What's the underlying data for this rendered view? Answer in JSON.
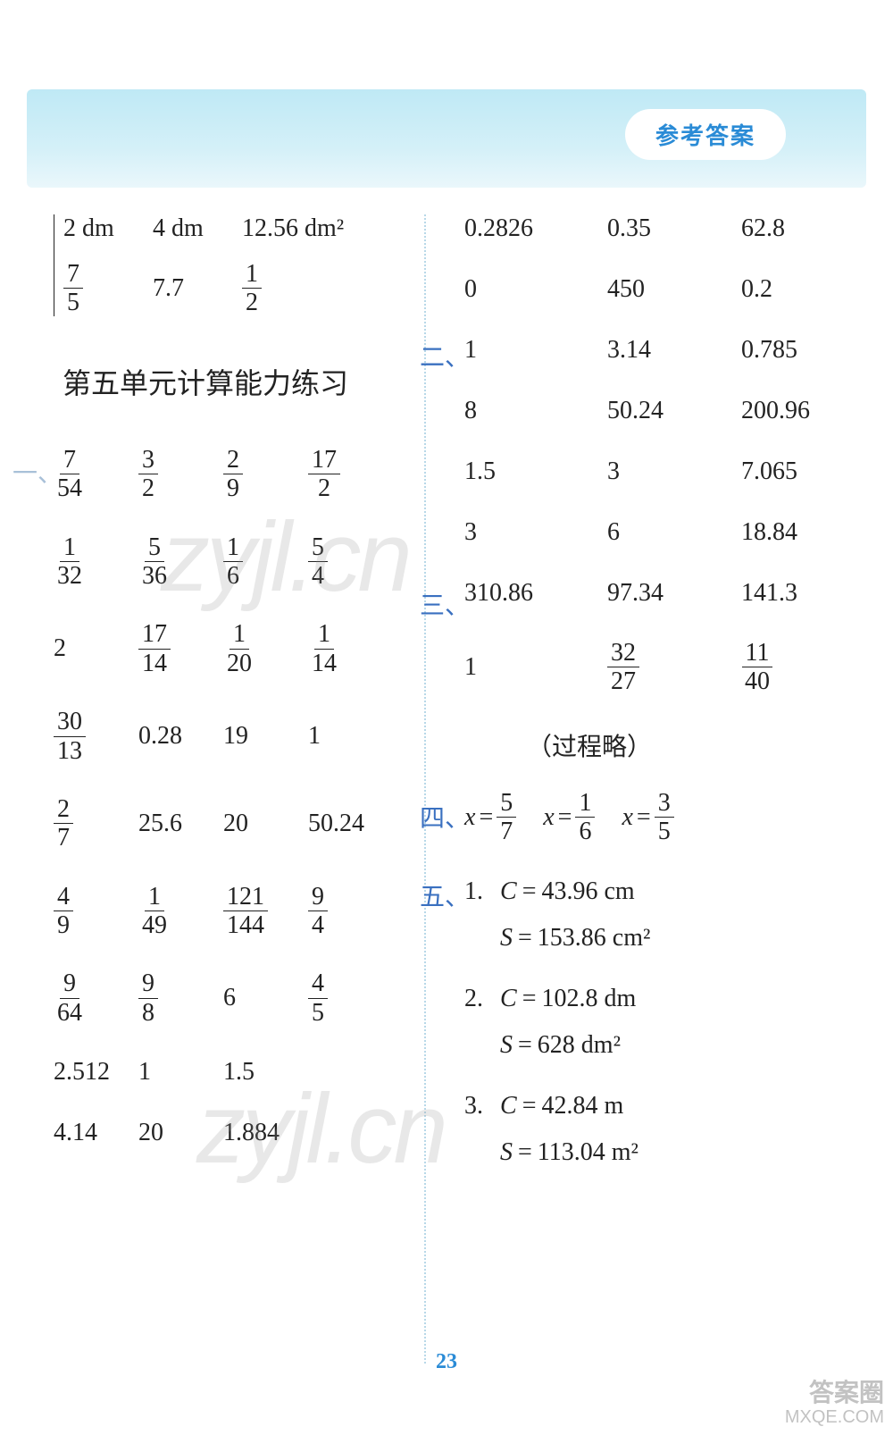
{
  "colors": {
    "banner_bg_top": "#bfe9f5",
    "banner_pill_text": "#2a8bd6",
    "section_marker_one": "#a8c0d8",
    "section_marker_two": "#3a70c0",
    "page_num": "#2a8bd6",
    "text": "#222222"
  },
  "banner": {
    "title": "参考答案"
  },
  "top_block": {
    "row1": [
      "2 dm",
      "4 dm",
      "12.56 dm²"
    ],
    "row2": [
      {
        "n": "7",
        "d": "5"
      },
      "7.7",
      {
        "n": "1",
        "d": "2"
      }
    ]
  },
  "heading": "第五单元计算能力练习",
  "section_one": {
    "marker": "一、",
    "rows": [
      [
        {
          "n": "7",
          "d": "54"
        },
        {
          "n": "3",
          "d": "2"
        },
        {
          "n": "2",
          "d": "9"
        },
        {
          "n": "17",
          "d": "2"
        }
      ],
      [
        {
          "n": "1",
          "d": "32"
        },
        {
          "n": "5",
          "d": "36"
        },
        {
          "n": "1",
          "d": "6"
        },
        {
          "n": "5",
          "d": "4"
        }
      ],
      [
        "2",
        {
          "n": "17",
          "d": "14"
        },
        {
          "n": "1",
          "d": "20"
        },
        {
          "n": "1",
          "d": "14"
        }
      ],
      [
        {
          "n": "30",
          "d": "13"
        },
        "0.28",
        "19",
        "1"
      ],
      [
        {
          "n": "2",
          "d": "7"
        },
        "25.6",
        "20",
        "50.24"
      ],
      [
        {
          "n": "4",
          "d": "9"
        },
        {
          "n": "1",
          "d": "49"
        },
        {
          "n": "121",
          "d": "144"
        },
        {
          "n": "9",
          "d": "4"
        }
      ],
      [
        {
          "n": "9",
          "d": "64"
        },
        {
          "n": "9",
          "d": "8"
        },
        "6",
        {
          "n": "4",
          "d": "5"
        }
      ],
      [
        "2.512",
        "1",
        "1.5",
        ""
      ],
      [
        "4.14",
        "20",
        "1.884",
        ""
      ]
    ]
  },
  "right_top": {
    "rows": [
      [
        "0.2826",
        "0.35",
        "62.8"
      ],
      [
        "0",
        "450",
        "0.2"
      ]
    ]
  },
  "section_two": {
    "marker": "二、",
    "rows": [
      [
        "1",
        "3.14",
        "0.785"
      ],
      [
        "8",
        "50.24",
        "200.96"
      ],
      [
        "1.5",
        "3",
        "7.065"
      ],
      [
        "3",
        "6",
        "18.84"
      ]
    ]
  },
  "section_three": {
    "marker": "三、",
    "row1": [
      "310.86",
      "97.34",
      "141.3"
    ],
    "row2": [
      "1",
      {
        "n": "32",
        "d": "27"
      },
      {
        "n": "11",
        "d": "40"
      }
    ],
    "note": "（过程略）"
  },
  "section_four": {
    "marker": "四、",
    "items": [
      {
        "var": "x",
        "n": "5",
        "d": "7"
      },
      {
        "var": "x",
        "n": "1",
        "d": "6"
      },
      {
        "var": "x",
        "n": "3",
        "d": "5"
      }
    ]
  },
  "section_five": {
    "marker": "五、",
    "items": [
      {
        "num": "1.",
        "C": "43.96 cm",
        "S": "153.86 cm²"
      },
      {
        "num": "2.",
        "C": "102.8 dm",
        "S": "628 dm²"
      },
      {
        "num": "3.",
        "C": "42.84 m",
        "S": "113.04 m²"
      }
    ]
  },
  "page_number": "23",
  "watermarks": {
    "w1": "zyjl.cn",
    "w2": "zyjl.cn",
    "corner1": "答案圈",
    "corner2": "MXQE.COM"
  }
}
